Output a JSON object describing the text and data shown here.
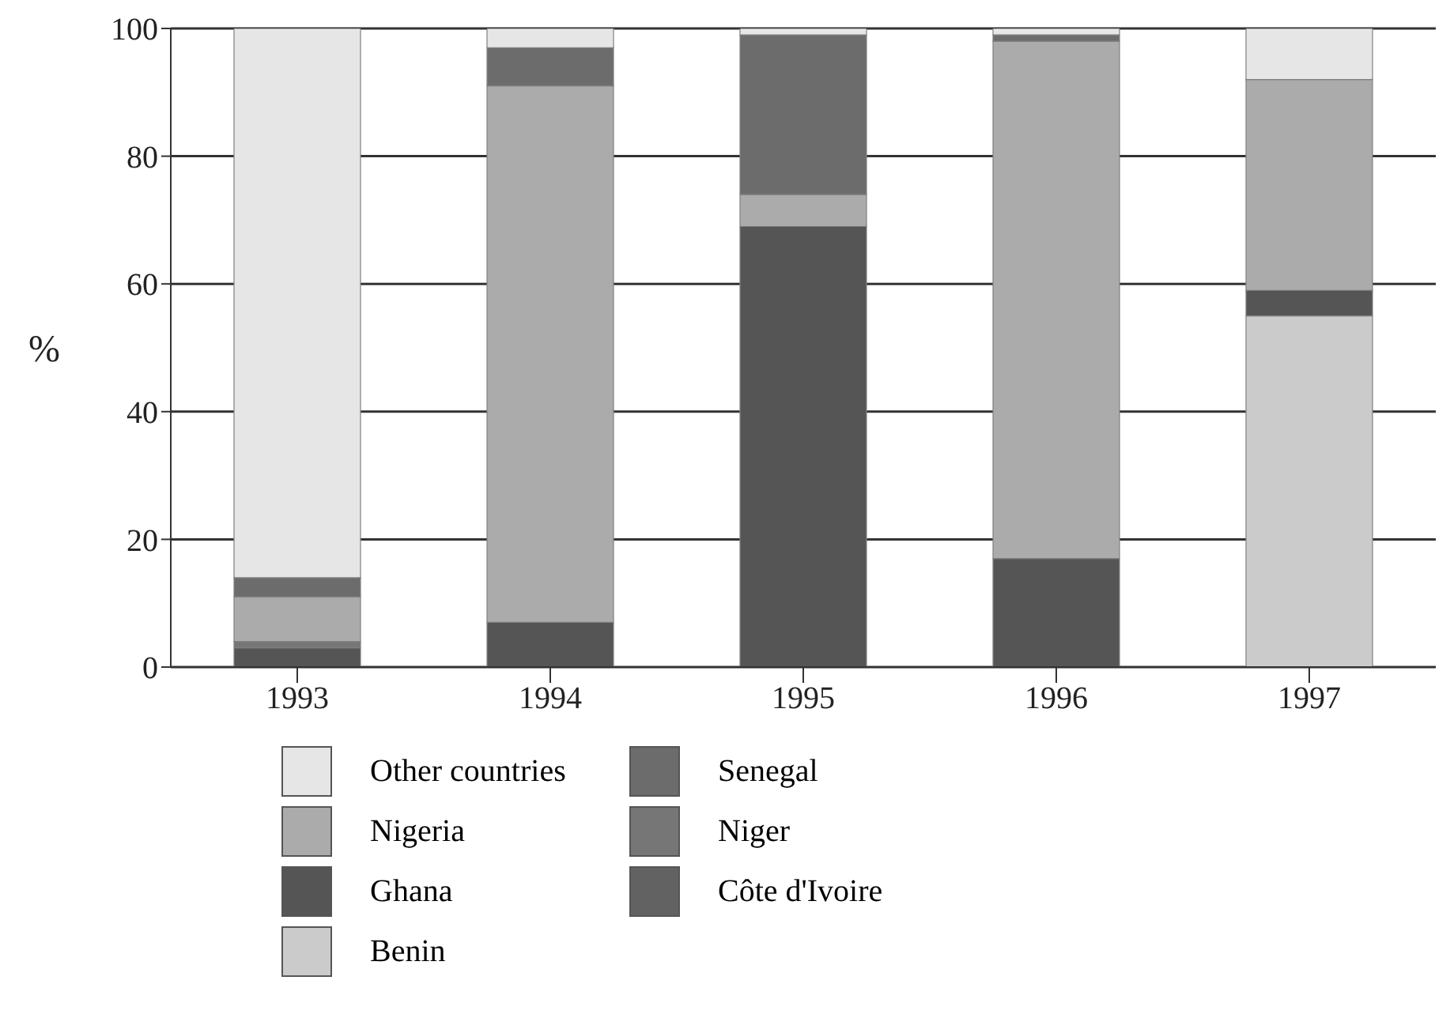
{
  "chart_data": {
    "type": "bar",
    "stacked": true,
    "ylabel": "%",
    "categories": [
      "1993",
      "1994",
      "1995",
      "1996",
      "1997"
    ],
    "ylim": [
      0,
      100
    ],
    "yticks": [
      0,
      20,
      40,
      60,
      80,
      100
    ],
    "grid": "y",
    "legend": "bottom",
    "series": [
      {
        "name": "Benin",
        "color": "#cbcbcb",
        "values": [
          0,
          0,
          0,
          0,
          55
        ]
      },
      {
        "name": "Côte d'Ivoire",
        "color": "#626262",
        "values": [
          0,
          0,
          0,
          0,
          0
        ]
      },
      {
        "name": "Ghana",
        "color": "#555555",
        "values": [
          3,
          7,
          69,
          17,
          4
        ]
      },
      {
        "name": "Niger",
        "color": "#767676",
        "values": [
          1,
          0,
          0,
          0,
          0
        ]
      },
      {
        "name": "Nigeria",
        "color": "#ababab",
        "values": [
          7,
          84,
          5,
          81,
          33
        ]
      },
      {
        "name": "Senegal",
        "color": "#6c6c6c",
        "values": [
          3,
          6,
          25,
          1,
          0
        ]
      },
      {
        "name": "Other countries",
        "color": "#e6e6e6",
        "values": [
          86,
          3,
          1,
          1,
          8
        ]
      }
    ]
  }
}
